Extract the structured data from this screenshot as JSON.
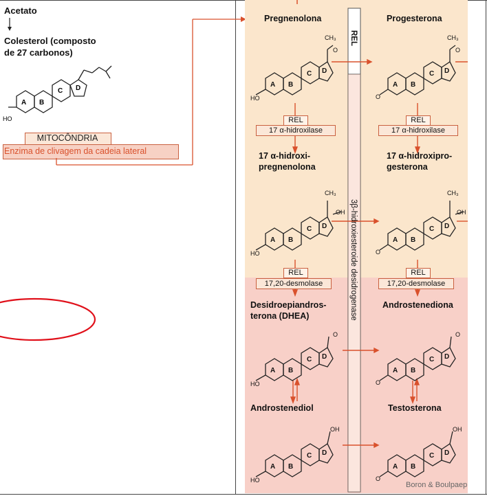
{
  "left": {
    "acetato": "Acetato",
    "colesterol": "Colesterol (composto",
    "colesterol2": "de 27 carbonos)",
    "mitocondria": "MITOCÔNDRIA",
    "enzima": "Enzima de clivagem da cadeia lateral"
  },
  "right": {
    "pregnenolona": "Pregnenolona",
    "progesterona": "Progesterona",
    "rel": "REL",
    "hidroxilase": "17 α-hidroxilase",
    "hidroxipreg1": "17 α-hidroxi-",
    "hidroxipreg2": "pregnenolona",
    "hidroxiprog1": "17 α-hidroxipro-",
    "hidroxiprog2": "gesterona",
    "desmolase": "17,20-desmolase",
    "dhea1": "Desidroepiandros-",
    "dhea2": "terona (DHEA)",
    "androstenediona": "Androstenediona",
    "androstenediol": "Androstenediol",
    "testosterona": "Testosterona",
    "enzyme_vertical": "3β-hidroxiesteroide desidrogenase",
    "credit": "Boron & Boulpaep"
  },
  "rings": {
    "a": "A",
    "b": "B",
    "c": "C",
    "d": "D",
    "ho": "HO",
    "o": "O",
    "oh": "OH",
    "ch3": "CH₃"
  },
  "colors": {
    "peach": "#fbe6cc",
    "pink": "#f8d0c8",
    "arrow": "#d9512c",
    "ellipse": "#e0101a",
    "box_border": "#c9603f"
  }
}
